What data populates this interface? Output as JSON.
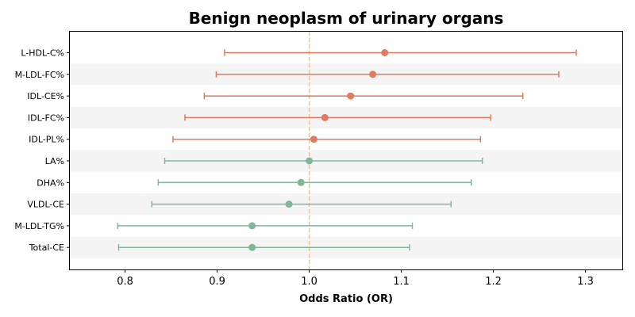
{
  "chart_data": {
    "type": "forest",
    "title": "Benign neoplasm of urinary organs",
    "xlabel": "Odds Ratio (OR)",
    "ylabel": "",
    "xlim": [
      0.74,
      1.34
    ],
    "xticks": [
      0.8,
      0.9,
      1.0,
      1.1,
      1.2,
      1.3
    ],
    "xtick_labels": [
      "0.8",
      "0.9",
      "1.0",
      "1.1",
      "1.2",
      "1.3"
    ],
    "reference_line": 1.0,
    "grid": false,
    "colors": {
      "risk": "#e07b5f",
      "protective": "#82b69b",
      "reference": "#f0c674",
      "stripe": "#f4f4f4"
    },
    "categories": [
      "L-HDL-C%",
      "M-LDL-FC%",
      "IDL-CE%",
      "IDL-FC%",
      "IDL-PL%",
      "LA%",
      "DHA%",
      "VLDL-CE",
      "M-LDL-TG%",
      "Total-CE"
    ],
    "or": [
      1.082,
      1.069,
      1.045,
      1.017,
      1.005,
      1.0,
      0.991,
      0.978,
      0.938,
      0.938
    ],
    "ci_lower": [
      0.908,
      0.899,
      0.886,
      0.865,
      0.852,
      0.843,
      0.836,
      0.829,
      0.792,
      0.793
    ],
    "ci_upper": [
      1.29,
      1.271,
      1.232,
      1.197,
      1.186,
      1.188,
      1.176,
      1.154,
      1.112,
      1.109
    ],
    "group": [
      "risk",
      "risk",
      "risk",
      "risk",
      "risk",
      "protective",
      "protective",
      "protective",
      "protective",
      "protective"
    ]
  }
}
